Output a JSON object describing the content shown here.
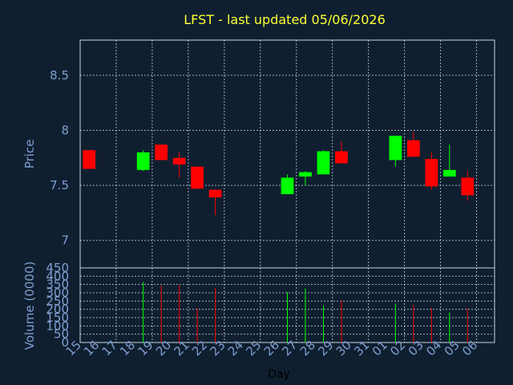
{
  "chart_data": {
    "title": "LFST - last updated 05/06/2026",
    "colors": {
      "up": "#00ff00",
      "down": "#ff0000",
      "background": "#0f1f30",
      "title": "#ffff33",
      "axis_text": "#7f9fcf"
    },
    "days": [
      "15",
      "16",
      "17",
      "18",
      "19",
      "20",
      "21",
      "22",
      "23",
      "24",
      "25",
      "26",
      "27",
      "28",
      "29",
      "30",
      "31",
      "01",
      "02",
      "03",
      "04",
      "05",
      "06"
    ],
    "price": {
      "type": "candlestick",
      "ylabel": "Price",
      "ylim": [
        6.75,
        8.82
      ],
      "yticks": [
        "7",
        "7.5",
        "8",
        "8.5"
      ],
      "candles": [
        {
          "day": "15",
          "open": 7.82,
          "high": 7.82,
          "low": 7.65,
          "close": 7.65
        },
        {
          "day": "18",
          "open": 7.64,
          "high": 7.82,
          "low": 7.63,
          "close": 7.8
        },
        {
          "day": "19",
          "open": 7.87,
          "high": 7.87,
          "low": 7.73,
          "close": 7.73
        },
        {
          "day": "20",
          "open": 7.75,
          "high": 7.8,
          "low": 7.57,
          "close": 7.69
        },
        {
          "day": "21",
          "open": 7.67,
          "high": 7.67,
          "low": 7.47,
          "close": 7.47
        },
        {
          "day": "22",
          "open": 7.46,
          "high": 7.46,
          "low": 7.23,
          "close": 7.39
        },
        {
          "day": "26",
          "open": 7.42,
          "high": 7.6,
          "low": 7.42,
          "close": 7.57
        },
        {
          "day": "27",
          "open": 7.58,
          "high": 7.63,
          "low": 7.5,
          "close": 7.62
        },
        {
          "day": "28",
          "open": 7.6,
          "high": 7.82,
          "low": 7.6,
          "close": 7.81
        },
        {
          "day": "29",
          "open": 7.81,
          "high": 7.9,
          "low": 7.7,
          "close": 7.7
        },
        {
          "day": "01",
          "open": 7.73,
          "high": 7.95,
          "low": 7.67,
          "close": 7.95
        },
        {
          "day": "02",
          "open": 7.91,
          "high": 7.99,
          "low": 7.76,
          "close": 7.76
        },
        {
          "day": "03",
          "open": 7.74,
          "high": 7.8,
          "low": 7.46,
          "close": 7.49
        },
        {
          "day": "04",
          "open": 7.58,
          "high": 7.87,
          "low": 7.58,
          "close": 7.64
        },
        {
          "day": "05",
          "open": 7.57,
          "high": 7.63,
          "low": 7.36,
          "close": 7.41
        }
      ]
    },
    "volume": {
      "type": "bar",
      "ylabel": "Volume (0000)",
      "ylim": [
        0,
        450
      ],
      "yticks": [
        "0",
        "50",
        "100",
        "150",
        "200",
        "250",
        "300",
        "350",
        "400",
        "450"
      ],
      "bars": [
        {
          "day": "18",
          "value": 365,
          "dir": "up"
        },
        {
          "day": "19",
          "value": 345,
          "dir": "down"
        },
        {
          "day": "20",
          "value": 345,
          "dir": "down"
        },
        {
          "day": "21",
          "value": 210,
          "dir": "down"
        },
        {
          "day": "22",
          "value": 330,
          "dir": "down"
        },
        {
          "day": "26",
          "value": 305,
          "dir": "up"
        },
        {
          "day": "27",
          "value": 325,
          "dir": "up"
        },
        {
          "day": "28",
          "value": 225,
          "dir": "up"
        },
        {
          "day": "29",
          "value": 255,
          "dir": "down"
        },
        {
          "day": "01",
          "value": 235,
          "dir": "up"
        },
        {
          "day": "02",
          "value": 225,
          "dir": "down"
        },
        {
          "day": "03",
          "value": 210,
          "dir": "down"
        },
        {
          "day": "04",
          "value": 180,
          "dir": "up"
        },
        {
          "day": "05",
          "value": 205,
          "dir": "down"
        }
      ]
    },
    "xlabel": "Day",
    "grid": true
  }
}
